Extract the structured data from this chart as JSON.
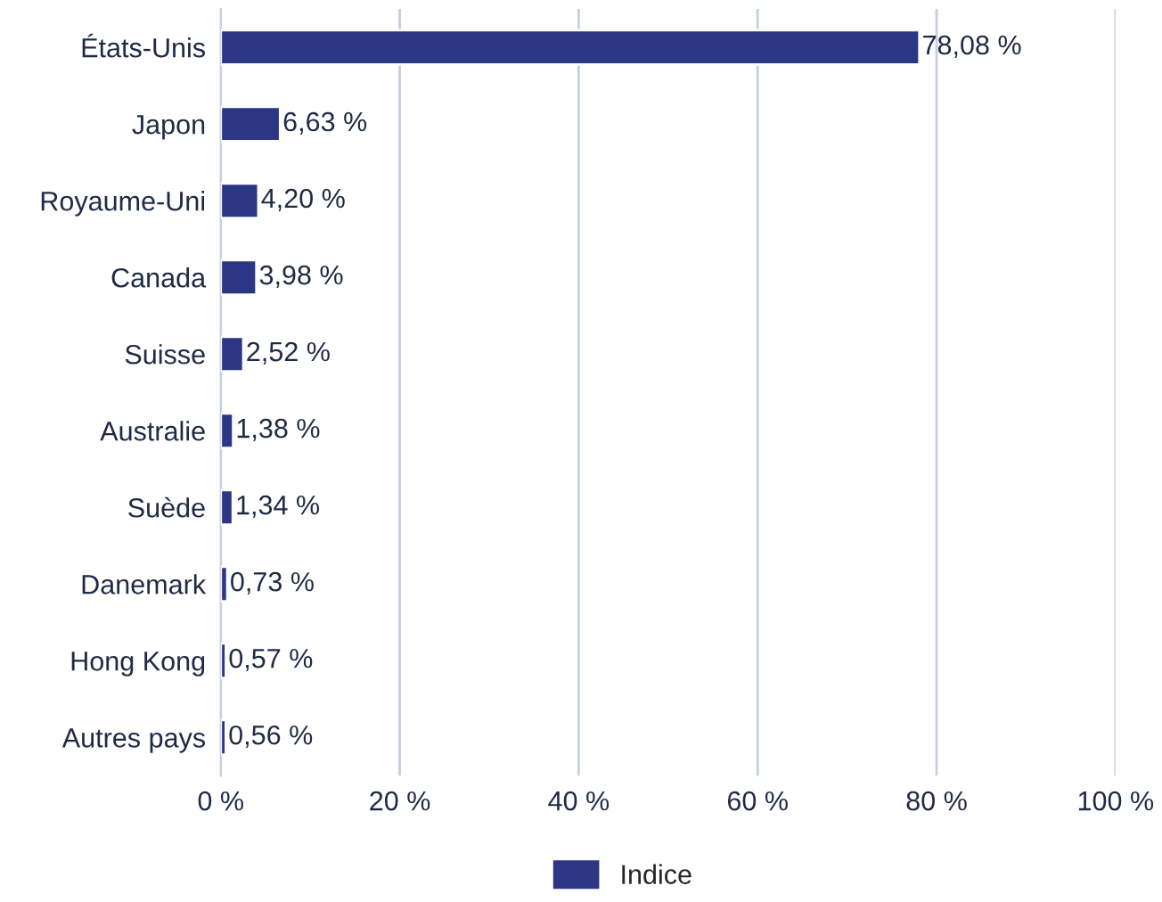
{
  "chart_data": {
    "type": "bar",
    "orientation": "horizontal",
    "categories": [
      "États-Unis",
      "Japon",
      "Royaume-Uni",
      "Canada",
      "Suisse",
      "Australie",
      "Suède",
      "Danemark",
      "Hong Kong",
      "Autres pays"
    ],
    "series": [
      {
        "name": "Indice",
        "color": "#2b3784",
        "values": [
          78.08,
          6.63,
          4.2,
          3.98,
          2.52,
          1.38,
          1.34,
          0.73,
          0.57,
          0.56
        ],
        "value_labels": [
          "78,08 %",
          "6,63 %",
          "4,20 %",
          "3,98 %",
          "2,52 %",
          "1,38 %",
          "1,34 %",
          "0,73 %",
          "0,57 %",
          "0,56 %"
        ]
      }
    ],
    "xlim": [
      0,
      100
    ],
    "xticks": [
      {
        "value": 0,
        "label": "0 %"
      },
      {
        "value": 20,
        "label": "20 %"
      },
      {
        "value": 40,
        "label": "40 %"
      },
      {
        "value": 60,
        "label": "60 %"
      },
      {
        "value": 80,
        "label": "80 %"
      },
      {
        "value": 100,
        "label": "100 %"
      }
    ],
    "grid": "x",
    "legend": "bottom"
  }
}
